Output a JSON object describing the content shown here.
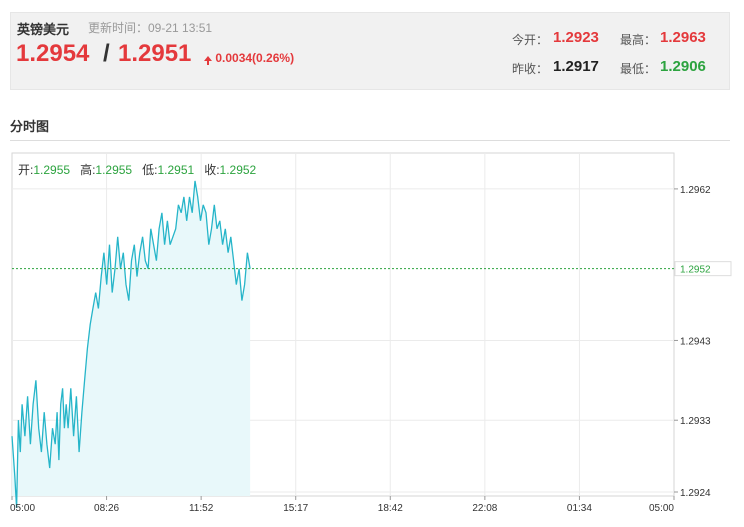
{
  "header": {
    "pair_name": "英镑美元",
    "update_time": "更新时间：09-21 13:51",
    "ask_price": "1.2954",
    "separator": "/",
    "bid_price": "1.2951",
    "change": "0.0034(0.26%)",
    "open_label": "今开：",
    "open_value": "1.2923",
    "high_label": "最高：",
    "high_value": "1.2963",
    "prev_close_label": "昨收：",
    "prev_close_value": "1.2917",
    "low_label": "最低：",
    "low_value": "1.2906"
  },
  "section": {
    "title": "分时图"
  },
  "legend": {
    "open_label": "开:",
    "open_value": "1.2955",
    "high_label": "高:",
    "high_value": "1.2955",
    "low_label": "低:",
    "low_value": "1.2951",
    "close_label": "收:",
    "close_value": "1.2952"
  },
  "colors": {
    "line": "#26b5c9",
    "fill": "#e8f8fa",
    "current_line": "#2ca33f",
    "up": "#e4393c",
    "down": "#2ca33f"
  },
  "chart_data": {
    "type": "area",
    "title": "分时图",
    "x_ticks": [
      "05:00",
      "08:26",
      "11:52",
      "15:17",
      "18:42",
      "22:08",
      "01:34",
      "05:00"
    ],
    "y_ticks": [
      "1.2962",
      "1.2943",
      "1.2933",
      "1.2924"
    ],
    "current_value": 1.2952,
    "current_label": "1.2952",
    "ylim": [
      1.29235,
      1.29665
    ],
    "x_minutes_range": [
      0,
      1440
    ],
    "grid": true,
    "series": [
      {
        "x_minutes": [
          0,
          6,
          10,
          14,
          18,
          22,
          28,
          34,
          40,
          46,
          52,
          58,
          64,
          70,
          76,
          82,
          88,
          94,
          98,
          102,
          106,
          110,
          114,
          118,
          122,
          128,
          134,
          140,
          146,
          152,
          158,
          164,
          170,
          176,
          182,
          188,
          194,
          200,
          206,
          212,
          218,
          224,
          230,
          236,
          242,
          248,
          254,
          260,
          266,
          272,
          278,
          284,
          290,
          296,
          302,
          308,
          314,
          320,
          326,
          332,
          338,
          344,
          350,
          356,
          362,
          368,
          374,
          380,
          386,
          392,
          398,
          404,
          410,
          416,
          422,
          428,
          434,
          440,
          446,
          452,
          458,
          464,
          470,
          476,
          482,
          488,
          494,
          500,
          506,
          512,
          518
        ],
        "values": [
          1.2931,
          1.2926,
          1.2922,
          1.2933,
          1.2929,
          1.2935,
          1.2931,
          1.2936,
          1.293,
          1.2935,
          1.2938,
          1.2932,
          1.2929,
          1.2934,
          1.293,
          1.2927,
          1.2932,
          1.293,
          1.2934,
          1.2928,
          1.2935,
          1.2937,
          1.2932,
          1.2935,
          1.2932,
          1.2937,
          1.2931,
          1.2936,
          1.2929,
          1.2934,
          1.2938,
          1.2942,
          1.2945,
          1.2947,
          1.2949,
          1.2947,
          1.2951,
          1.2954,
          1.295,
          1.2955,
          1.2949,
          1.2952,
          1.2956,
          1.2952,
          1.2954,
          1.295,
          1.2948,
          1.2953,
          1.2955,
          1.2951,
          1.2954,
          1.2956,
          1.2953,
          1.2952,
          1.2957,
          1.2955,
          1.2953,
          1.2957,
          1.2959,
          1.2955,
          1.2958,
          1.2955,
          1.2956,
          1.2957,
          1.296,
          1.2959,
          1.2961,
          1.2958,
          1.2961,
          1.2959,
          1.2963,
          1.2961,
          1.2958,
          1.296,
          1.2959,
          1.2955,
          1.2957,
          1.296,
          1.2957,
          1.2958,
          1.2955,
          1.2957,
          1.2954,
          1.2956,
          1.2953,
          1.295,
          1.2952,
          1.2948,
          1.295,
          1.2954,
          1.2952
        ]
      }
    ]
  }
}
